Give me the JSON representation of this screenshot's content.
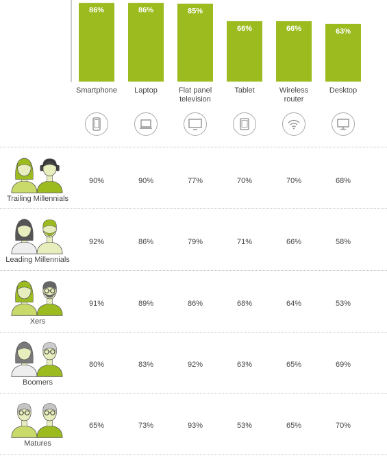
{
  "chart_data": {
    "type": "bar",
    "categories": [
      "Smartphone",
      "Laptop",
      "Flat panel television",
      "Tablet",
      "Wireless router",
      "Desktop"
    ],
    "category_lines": [
      [
        "Smartphone"
      ],
      [
        "Laptop"
      ],
      [
        "Flat panel",
        "television"
      ],
      [
        "Tablet"
      ],
      [
        "Wireless",
        "router"
      ],
      [
        "Desktop"
      ]
    ],
    "values": [
      86,
      86,
      85,
      66,
      66,
      63
    ],
    "value_labels": [
      "86%",
      "86%",
      "85%",
      "66%",
      "66%",
      "63%"
    ],
    "bar_color": "#9cbb1f",
    "icons": [
      "smartphone-icon",
      "laptop-icon",
      "tv-icon",
      "tablet-icon",
      "wifi-icon",
      "desktop-icon"
    ],
    "table": {
      "rows": [
        {
          "generation": "Trailing Millennials",
          "values": [
            "90%",
            "90%",
            "77%",
            "70%",
            "70%",
            "68%"
          ]
        },
        {
          "generation": "Leading Millennials",
          "values": [
            "92%",
            "86%",
            "79%",
            "71%",
            "66%",
            "58%"
          ]
        },
        {
          "generation": "Xers",
          "values": [
            "91%",
            "89%",
            "86%",
            "68%",
            "64%",
            "53%"
          ]
        },
        {
          "generation": "Boomers",
          "values": [
            "80%",
            "83%",
            "92%",
            "63%",
            "65%",
            "69%"
          ]
        },
        {
          "generation": "Matures",
          "values": [
            "65%",
            "73%",
            "93%",
            "53%",
            "65%",
            "70%"
          ]
        }
      ]
    }
  },
  "colors": {
    "accent": "#9cbb1f",
    "accent_light": "#c9d96a",
    "pale": "#e8edbd",
    "gray": "#7a7a7a",
    "silver": "#c4c4c4"
  }
}
